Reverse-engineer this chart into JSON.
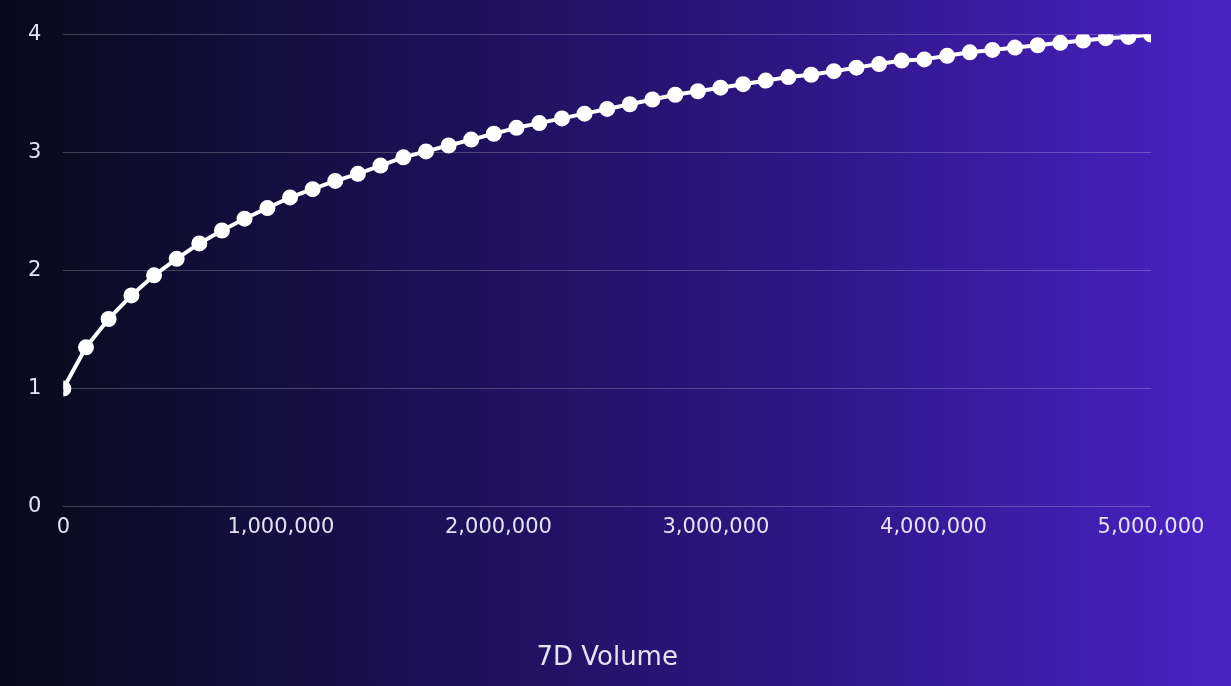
{
  "chart_data": {
    "type": "line",
    "xlabel": "7D Volume",
    "x": [
      0,
      104000,
      208000,
      313000,
      417000,
      521000,
      625000,
      729000,
      833000,
      938000,
      1042000,
      1146000,
      1250000,
      1354000,
      1458000,
      1563000,
      1667000,
      1771000,
      1875000,
      1979000,
      2083000,
      2188000,
      2292000,
      2396000,
      2500000,
      2604000,
      2708000,
      2813000,
      2917000,
      3021000,
      3125000,
      3229000,
      3333000,
      3438000,
      3542000,
      3646000,
      3750000,
      3854000,
      3958000,
      4063000,
      4167000,
      4271000,
      4375000,
      4479000,
      4583000,
      4688000,
      4792000,
      4896000,
      5000000
    ],
    "series": [
      {
        "color": "#ffffff",
        "values": [
          1.0,
          1.35,
          1.59,
          1.79,
          1.96,
          2.1,
          2.23,
          2.34,
          2.44,
          2.53,
          2.62,
          2.69,
          2.76,
          2.82,
          2.89,
          2.96,
          3.01,
          3.06,
          3.11,
          3.16,
          3.21,
          3.25,
          3.29,
          3.33,
          3.37,
          3.41,
          3.45,
          3.49,
          3.52,
          3.55,
          3.58,
          3.61,
          3.64,
          3.66,
          3.69,
          3.72,
          3.75,
          3.78,
          3.79,
          3.82,
          3.85,
          3.87,
          3.89,
          3.91,
          3.93,
          3.95,
          3.97,
          3.98,
          4.0
        ]
      }
    ],
    "xlim": [
      0,
      5000000
    ],
    "xticks": [
      {
        "value": 0,
        "label": "0"
      },
      {
        "value": 1000000,
        "label": "1,000,000"
      },
      {
        "value": 2000000,
        "label": "2,000,000"
      },
      {
        "value": 3000000,
        "label": "3,000,000"
      },
      {
        "value": 4000000,
        "label": "4,000,000"
      },
      {
        "value": 5000000,
        "label": "5,000,000"
      }
    ],
    "ylim": [
      0,
      4
    ],
    "yticks": [
      0,
      1,
      2,
      3,
      4
    ],
    "grid": "y",
    "legend": false,
    "marker": "circle",
    "line_style": "solid"
  }
}
